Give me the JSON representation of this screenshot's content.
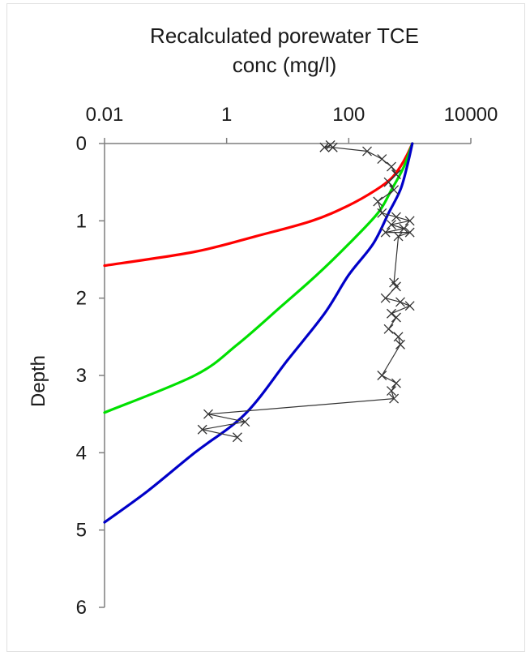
{
  "chart_data": {
    "type": "line",
    "title_line1": "Recalculated porewater TCE",
    "title_line2": "conc (mg/l)",
    "ylabel": "Depth",
    "x_scale": "log",
    "x_axis_position": "top",
    "y_inverted": true,
    "xlim": [
      0.01,
      10000
    ],
    "ylim": [
      0,
      6
    ],
    "x_ticks": [
      {
        "value": 0.01,
        "label": "0.01"
      },
      {
        "value": 1,
        "label": "1"
      },
      {
        "value": 100,
        "label": "100"
      },
      {
        "value": 10000,
        "label": "10000"
      }
    ],
    "y_ticks": [
      {
        "value": 0,
        "label": "0"
      },
      {
        "value": 1,
        "label": "1"
      },
      {
        "value": 2,
        "label": "2"
      },
      {
        "value": 3,
        "label": "3"
      },
      {
        "value": 4,
        "label": "4"
      },
      {
        "value": 5,
        "label": "5"
      },
      {
        "value": 6,
        "label": "6"
      }
    ],
    "grid": false,
    "series": [
      {
        "color": "#ff0000",
        "marker": "none",
        "points": [
          [
            1100,
            0
          ],
          [
            900,
            0.15
          ],
          [
            700,
            0.3
          ],
          [
            500,
            0.45
          ],
          [
            280,
            0.6
          ],
          [
            100,
            0.8
          ],
          [
            25,
            1.0
          ],
          [
            3,
            1.2
          ],
          [
            0.3,
            1.4
          ],
          [
            0.01,
            1.58
          ]
        ]
      },
      {
        "color": "#00e000",
        "marker": "none",
        "points": [
          [
            1100,
            0
          ],
          [
            800,
            0.3
          ],
          [
            500,
            0.6
          ],
          [
            300,
            0.9
          ],
          [
            100,
            1.3
          ],
          [
            30,
            1.7
          ],
          [
            8,
            2.1
          ],
          [
            1.5,
            2.6
          ],
          [
            0.3,
            3.0
          ],
          [
            0.01,
            3.48
          ]
        ]
      },
      {
        "color": "#0000c8",
        "marker": "none",
        "points": [
          [
            1100,
            0
          ],
          [
            900,
            0.3
          ],
          [
            700,
            0.6
          ],
          [
            450,
            0.9
          ],
          [
            250,
            1.3
          ],
          [
            100,
            1.7
          ],
          [
            40,
            2.2
          ],
          [
            10,
            2.8
          ],
          [
            2,
            3.5
          ],
          [
            0.3,
            4.0
          ],
          [
            0.05,
            4.5
          ],
          [
            0.01,
            4.9
          ]
        ]
      },
      {
        "color": "#333333",
        "marker": "x",
        "points": [
          [
            50,
            0.02
          ],
          [
            40,
            0.05
          ],
          [
            55,
            0.05
          ],
          [
            200,
            0.1
          ],
          [
            350,
            0.2
          ],
          [
            500,
            0.3
          ],
          [
            600,
            0.4
          ],
          [
            450,
            0.5
          ],
          [
            550,
            0.6
          ],
          [
            300,
            0.75
          ],
          [
            350,
            0.9
          ],
          [
            600,
            0.95
          ],
          [
            1000,
            1.0
          ],
          [
            500,
            1.05
          ],
          [
            800,
            1.1
          ],
          [
            400,
            1.15
          ],
          [
            1000,
            1.15
          ],
          [
            650,
            1.2
          ],
          [
            550,
            1.8
          ],
          [
            600,
            1.85
          ],
          [
            400,
            2.0
          ],
          [
            700,
            2.05
          ],
          [
            1000,
            2.1
          ],
          [
            500,
            2.2
          ],
          [
            600,
            2.25
          ],
          [
            450,
            2.4
          ],
          [
            650,
            2.5
          ],
          [
            700,
            2.6
          ],
          [
            350,
            3.0
          ],
          [
            600,
            3.1
          ],
          [
            500,
            3.2
          ],
          [
            550,
            3.3
          ],
          [
            0.5,
            3.5
          ],
          [
            2,
            3.6
          ],
          [
            0.4,
            3.7
          ],
          [
            1.5,
            3.8
          ]
        ]
      }
    ]
  }
}
